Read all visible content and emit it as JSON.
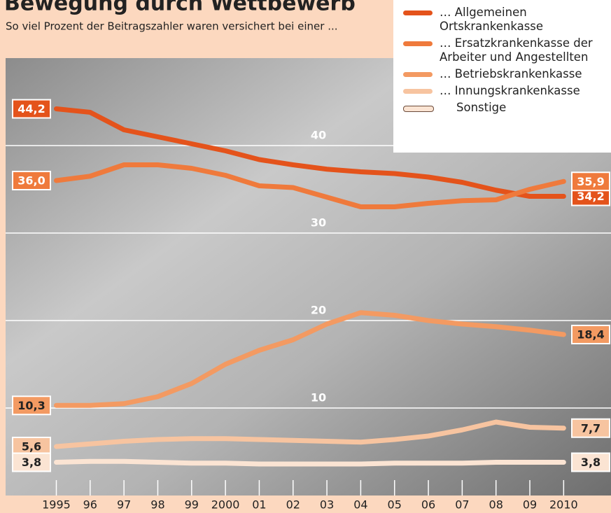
{
  "chart_data": {
    "type": "line",
    "title": "Bewegung durch Wettbewerb",
    "subtitle": "So viel Prozent der Beitragszahler waren versichert bei einer ...",
    "x": [
      1995,
      1996,
      1997,
      1998,
      1999,
      2000,
      2001,
      2002,
      2003,
      2004,
      2005,
      2006,
      2007,
      2008,
      2009,
      2010
    ],
    "xlim": [
      1993.5,
      2011.4
    ],
    "xticks": [
      {
        "value": 1995,
        "label": "1995"
      },
      {
        "value": 1996,
        "label": "96"
      },
      {
        "value": 1997,
        "label": "97"
      },
      {
        "value": 1998,
        "label": "98"
      },
      {
        "value": 1999,
        "label": "99"
      },
      2000,
      {
        "value": 2001,
        "label": "01"
      },
      {
        "value": 2002,
        "label": "02"
      },
      {
        "value": 2003,
        "label": "03"
      },
      {
        "value": 2004,
        "label": "04"
      },
      {
        "value": 2005,
        "label": "05"
      },
      {
        "value": 2006,
        "label": "06"
      },
      {
        "value": 2007,
        "label": "07"
      },
      {
        "value": 2008,
        "label": "08"
      },
      {
        "value": 2009,
        "label": "09"
      },
      2010
    ],
    "ylim": [
      0,
      50
    ],
    "yticks": [
      10,
      20,
      30,
      40
    ],
    "grid": true,
    "series": [
      {
        "name": "… Allgemeinen Ortskrankenkasse",
        "color": "#e4531b",
        "values": [
          44.2,
          43.8,
          41.8,
          41.0,
          40.2,
          39.4,
          38.4,
          37.8,
          37.3,
          37.0,
          36.8,
          36.4,
          35.8,
          34.9,
          34.2,
          34.2
        ],
        "value_labels": [
          "44,2",
          null,
          null,
          null,
          null,
          null,
          null,
          null,
          null,
          null,
          null,
          null,
          null,
          null,
          null,
          "34,2"
        ]
      },
      {
        "name": "… Ersatzkrankenkasse der Arbeiter und Angestellten",
        "color": "#ef7a3c",
        "values": [
          36.0,
          36.5,
          37.8,
          37.8,
          37.4,
          36.6,
          35.4,
          35.2,
          34.1,
          33.0,
          33.0,
          33.4,
          33.7,
          33.8,
          35.0,
          35.9
        ],
        "value_labels": [
          "36,0",
          null,
          null,
          null,
          null,
          null,
          null,
          null,
          null,
          null,
          null,
          null,
          null,
          null,
          null,
          "35,9"
        ]
      },
      {
        "name": "… Betriebskrankenkasse",
        "color": "#f39a62",
        "values": [
          10.3,
          10.3,
          10.5,
          11.3,
          12.8,
          15.0,
          16.6,
          17.8,
          19.6,
          20.9,
          20.6,
          20.0,
          19.6,
          19.3,
          18.9,
          18.4
        ],
        "value_labels": [
          "10,3",
          null,
          null,
          null,
          null,
          null,
          null,
          null,
          null,
          null,
          null,
          null,
          null,
          null,
          null,
          "18,4"
        ]
      },
      {
        "name": "… Innungskrankenkasse",
        "color": "#f7c4a0",
        "values": [
          5.6,
          5.9,
          6.2,
          6.4,
          6.5,
          6.5,
          6.4,
          6.3,
          6.2,
          6.1,
          6.4,
          6.8,
          7.5,
          8.4,
          7.8,
          7.7
        ],
        "value_labels": [
          "5,6",
          null,
          null,
          null,
          null,
          null,
          null,
          null,
          null,
          null,
          null,
          null,
          null,
          null,
          null,
          "7,7"
        ]
      },
      {
        "name": "Sonstige",
        "color": "#fbe4d3",
        "values": [
          3.8,
          3.9,
          3.9,
          3.8,
          3.7,
          3.7,
          3.6,
          3.6,
          3.6,
          3.6,
          3.7,
          3.7,
          3.7,
          3.8,
          3.8,
          3.8
        ],
        "value_labels": [
          "3,8",
          null,
          null,
          null,
          null,
          null,
          null,
          null,
          null,
          null,
          null,
          null,
          null,
          null,
          null,
          "3,8"
        ]
      }
    ]
  }
}
